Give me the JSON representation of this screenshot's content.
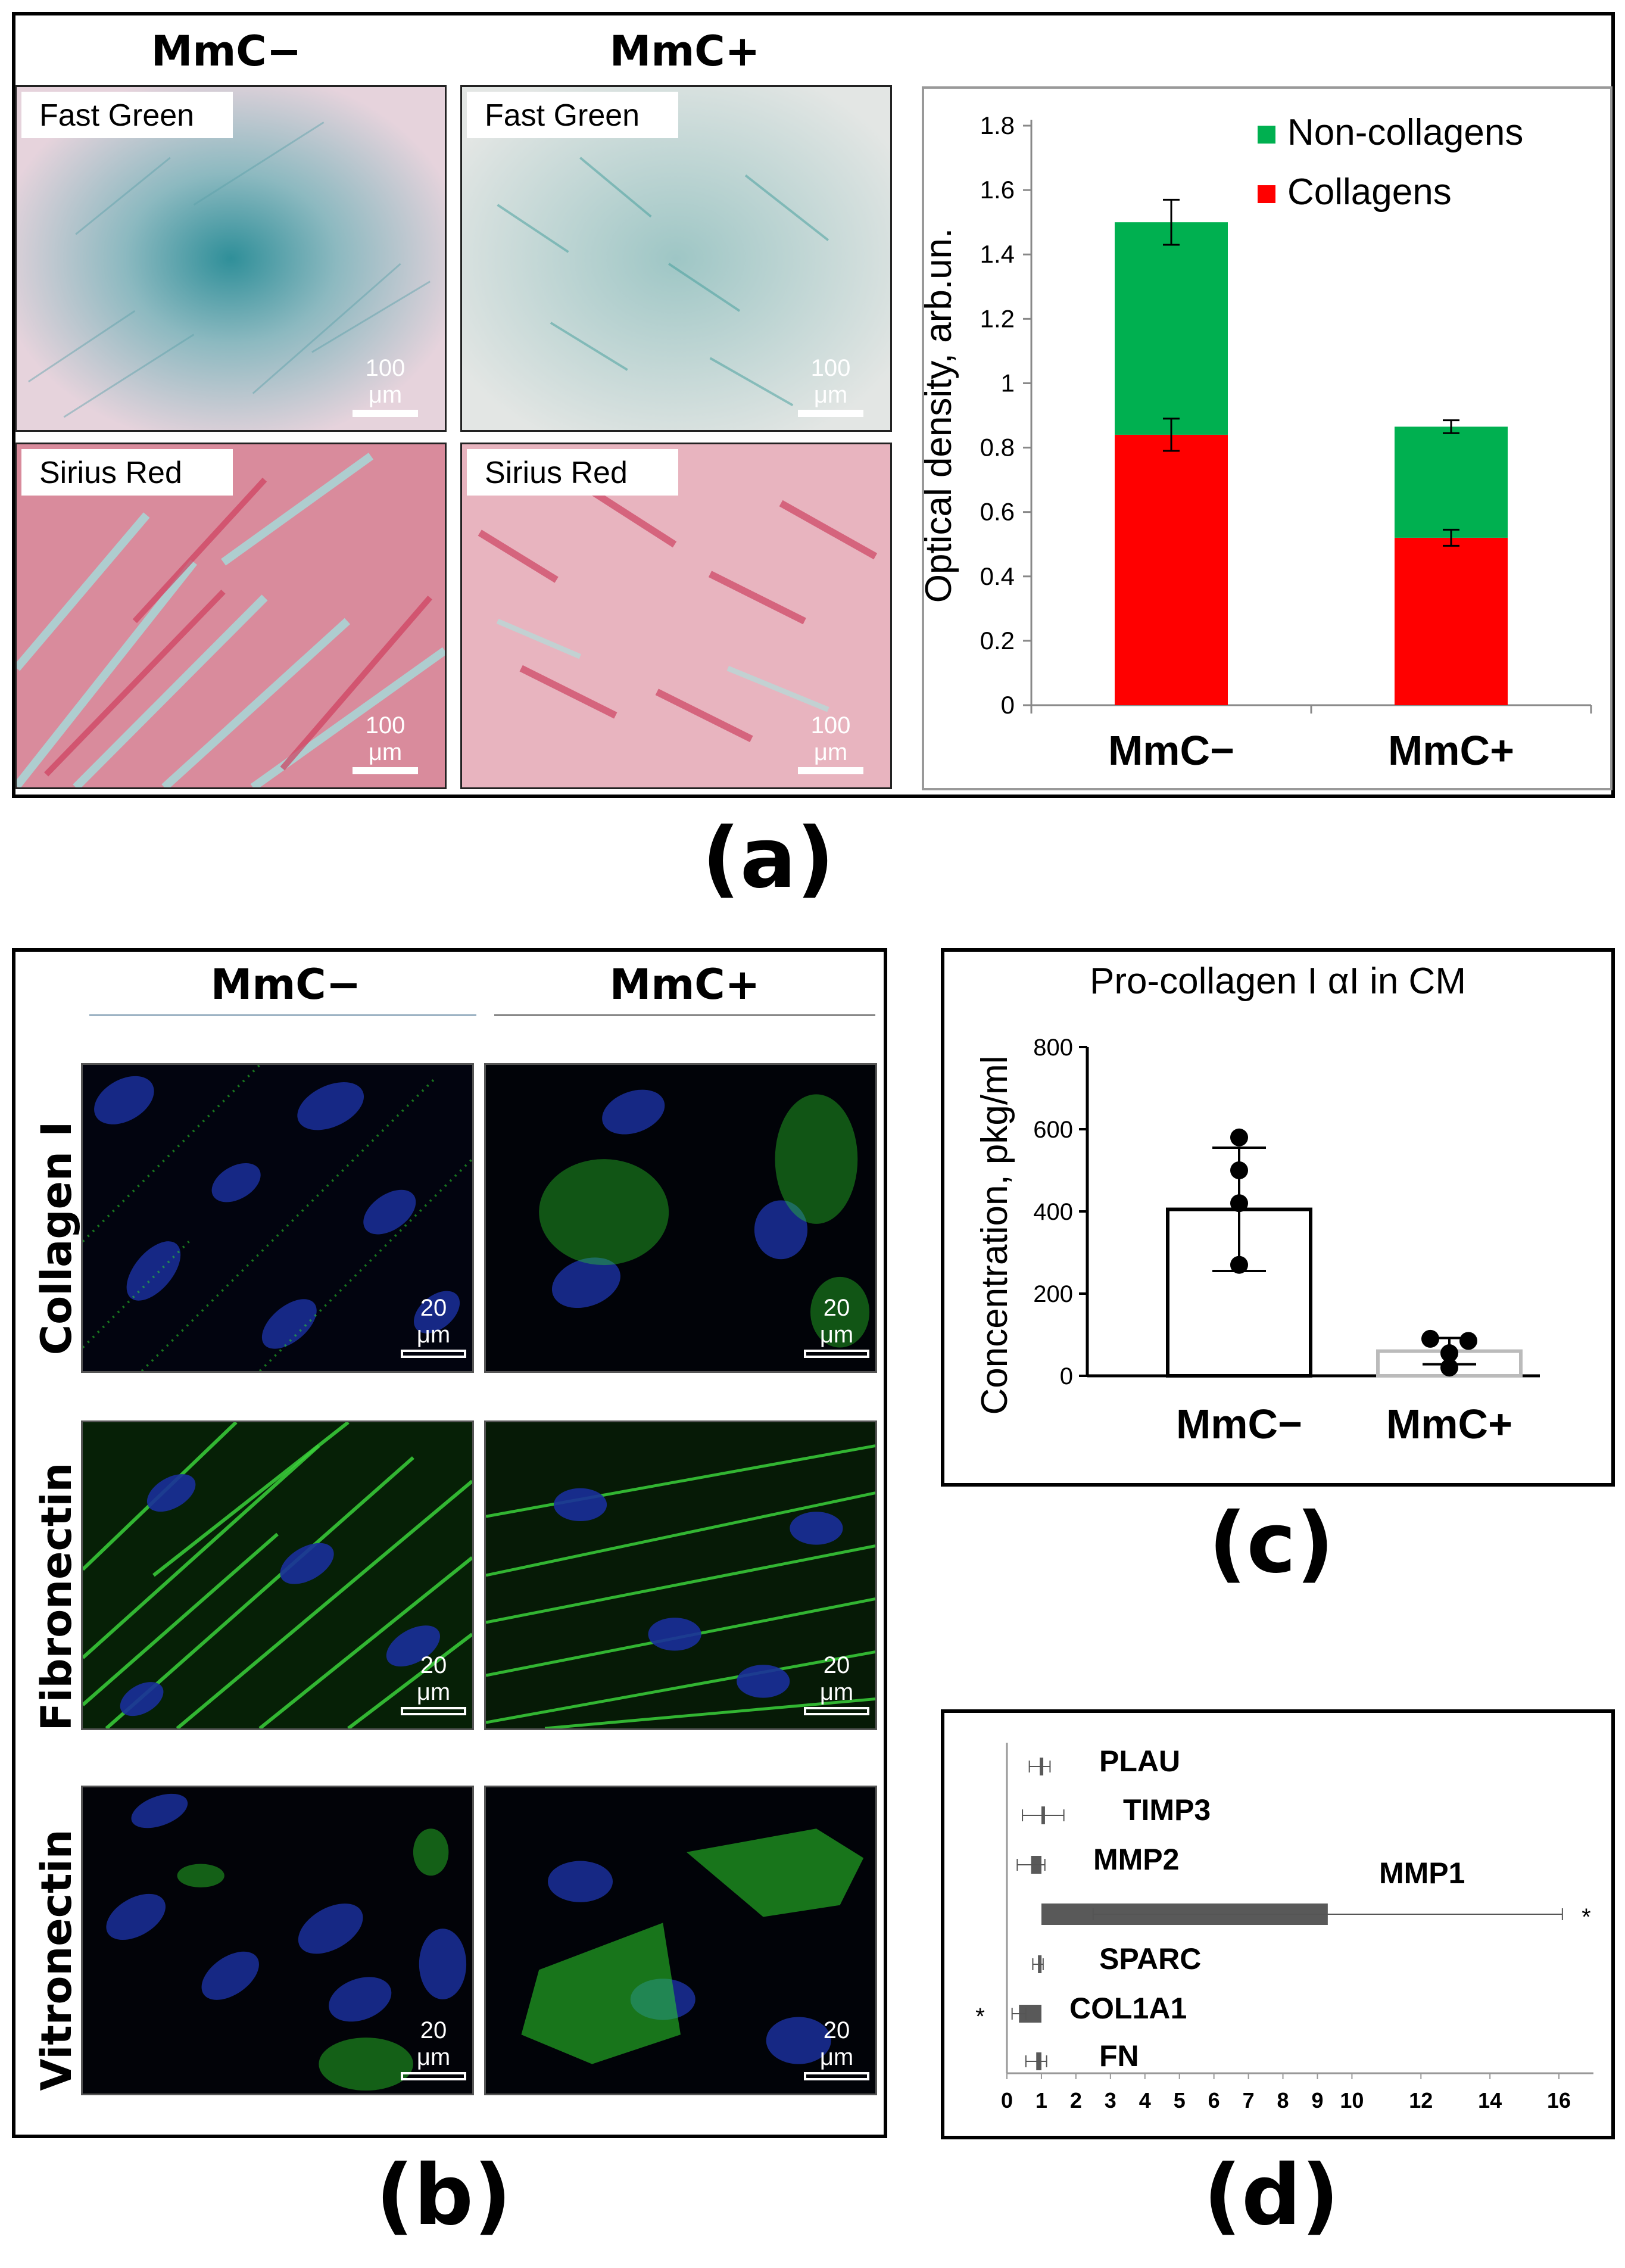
{
  "panels": {
    "a": {
      "letter": "(a)",
      "col_headers": [
        "MmC−",
        "MmC+"
      ],
      "stains": [
        "Fast Green",
        "Sirius  Red"
      ],
      "scale_label": "100 μm"
    },
    "b": {
      "letter": "(b)",
      "col_headers": [
        "MmC−",
        "MmC+"
      ],
      "row_labels": [
        "Collagen I",
        "Fibronectin",
        "Vitronectin"
      ],
      "scale_label": "20 μm"
    },
    "c": {
      "letter": "(c)"
    },
    "d": {
      "letter": "(d)"
    }
  },
  "colors": {
    "collagens": "#ff0000",
    "non_collagens": "#00b050",
    "hbar": "#595959"
  },
  "chart_data": [
    {
      "id": "a",
      "type": "bar",
      "stacked": true,
      "title": "",
      "categories": [
        "MmC−",
        "MmC+"
      ],
      "series": [
        {
          "name": "Collagens",
          "values": [
            0.84,
            0.52
          ],
          "errors": [
            0.05,
            0.025
          ]
        },
        {
          "name": "Non-collagens",
          "values": [
            0.66,
            0.345
          ],
          "errors": [
            0.07,
            0.02
          ]
        }
      ],
      "legend": [
        "Non-collagens",
        "Collagens"
      ],
      "ylabel": "Optical density, arb.un.",
      "xlabel": "",
      "ylim": [
        0,
        1.8
      ],
      "yticks": [
        "0",
        "0.2",
        "0.4",
        "0.6",
        "0.8",
        "1",
        "1.2",
        "1.4",
        "1.6",
        "1.8"
      ],
      "ytick_values": [
        0,
        0.2,
        0.4,
        0.6,
        0.8,
        1,
        1.2,
        1.4,
        1.6,
        1.8
      ]
    },
    {
      "id": "c",
      "type": "bar",
      "title": "Pro-collagen I αI in CM",
      "categories": [
        "MmC−",
        "MmC+"
      ],
      "values": [
        405,
        60
      ],
      "sd": [
        150,
        32
      ],
      "points": [
        [
          580,
          500,
          420,
          270
        ],
        [
          90,
          85,
          55,
          20
        ]
      ],
      "ylabel": "Concentration, pkg/ml",
      "ylim": [
        0,
        800
      ],
      "yticks": [
        "0",
        "200",
        "400",
        "600",
        "800"
      ],
      "ytick_values": [
        0,
        200,
        400,
        600,
        800
      ]
    },
    {
      "id": "d",
      "type": "bar",
      "orientation": "horizontal",
      "categories": [
        "PLAU",
        "TIMP3",
        "MMP2",
        "MMP1",
        "SPARC",
        "COL1A1",
        "FN"
      ],
      "values": [
        0.95,
        1.05,
        0.7,
        9.3,
        0.9,
        0.35,
        0.85
      ],
      "errors": [
        0.3,
        0.6,
        0.4,
        6.8,
        0.15,
        0.2,
        0.3
      ],
      "significance": [
        "",
        "",
        "",
        "*",
        "",
        "*",
        ""
      ],
      "baseline": 1,
      "xlim": [
        0,
        17
      ],
      "xticks": [
        "0",
        "1",
        "2",
        "3",
        "4",
        "5",
        "6",
        "7",
        "8",
        "9",
        "10",
        "12",
        "14",
        "16"
      ],
      "xtick_values": [
        0,
        1,
        2,
        3,
        4,
        5,
        6,
        7,
        8,
        9,
        10,
        12,
        14,
        16
      ]
    }
  ]
}
